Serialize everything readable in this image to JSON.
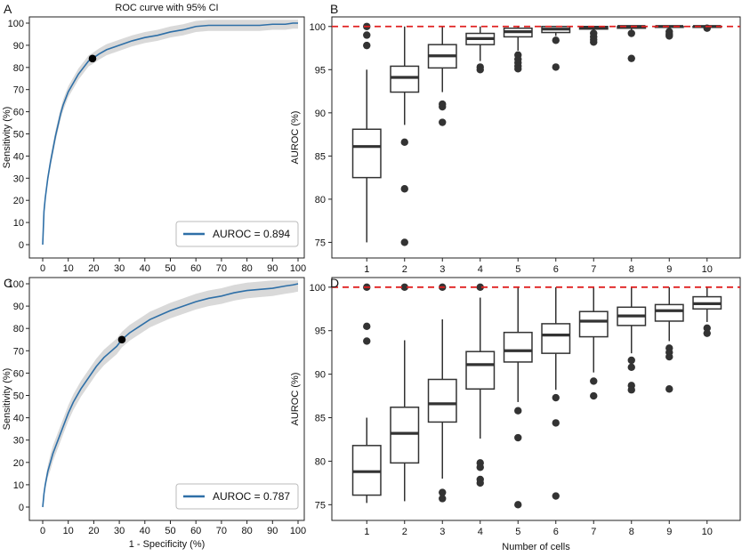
{
  "chart_data": [
    {
      "panel": "A",
      "type": "line",
      "title": "ROC curve with 95% CI",
      "xlabel": "",
      "ylabel": "Sensitivity (%)",
      "xlim": [
        0,
        100
      ],
      "ylim": [
        0,
        100
      ],
      "xticks": [
        0,
        10,
        20,
        30,
        40,
        50,
        60,
        70,
        80,
        90,
        100
      ],
      "yticks": [
        0,
        10,
        20,
        30,
        40,
        50,
        60,
        70,
        80,
        90,
        100
      ],
      "x": [
        0,
        0.5,
        1,
        2,
        3,
        4,
        5,
        6,
        7,
        8,
        9,
        10,
        12,
        14,
        16,
        18,
        19.5,
        22,
        25,
        30,
        35,
        40,
        45,
        50,
        55,
        60,
        65,
        70,
        75,
        80,
        85,
        90,
        95,
        98,
        100
      ],
      "y": [
        0,
        15,
        21,
        30,
        37,
        43,
        49,
        54,
        59,
        63,
        66,
        69,
        73,
        77,
        80,
        83,
        84,
        86,
        88,
        90,
        92,
        93.5,
        94.5,
        96,
        97,
        98.5,
        99,
        99,
        99,
        99,
        99,
        99.5,
        99.5,
        100,
        100
      ],
      "ci_halfwidth": 2.5,
      "highlight_point": {
        "x": 19.5,
        "y": 84
      },
      "legend": "AUROC = 0.894",
      "legend_position": "bottom-right",
      "line_color": "#2e6fa7",
      "band_color": "#d9d9d9"
    },
    {
      "panel": "B",
      "type": "box",
      "title": "",
      "xlabel": "",
      "ylabel": "AUROC (%)",
      "categories": [
        1,
        2,
        3,
        4,
        5,
        6,
        7,
        8,
        9,
        10
      ],
      "ylim": [
        73.5,
        100.8
      ],
      "yticks": [
        75,
        80,
        85,
        90,
        95,
        100
      ],
      "reference_line": 100,
      "reference_color": "#e02020",
      "boxes": [
        {
          "q1": 82.5,
          "median": 86.1,
          "q3": 88.1,
          "whisker_low": 75.0,
          "whisker_high": 95.0,
          "outliers": [
            97.8,
            99.0,
            100.0
          ]
        },
        {
          "q1": 92.4,
          "median": 94.1,
          "q3": 95.4,
          "whisker_low": 88.6,
          "whisker_high": 100.0,
          "outliers": [
            86.6,
            81.2,
            75.0
          ]
        },
        {
          "q1": 95.2,
          "median": 96.6,
          "q3": 97.9,
          "whisker_low": 92.4,
          "whisker_high": 100.0,
          "outliers": [
            91.0,
            90.7,
            88.9
          ]
        },
        {
          "q1": 97.9,
          "median": 98.6,
          "q3": 99.2,
          "whisker_low": 96.0,
          "whisker_high": 100.0,
          "outliers": [
            95.3,
            95.0
          ]
        },
        {
          "q1": 98.8,
          "median": 99.4,
          "q3": 99.8,
          "whisker_low": 97.2,
          "whisker_high": 100.0,
          "outliers": [
            96.7,
            96.2,
            95.8,
            95.4,
            95.1
          ]
        },
        {
          "q1": 99.3,
          "median": 99.7,
          "q3": 100.0,
          "whisker_low": 98.9,
          "whisker_high": 100.0,
          "outliers": [
            98.4,
            95.3
          ]
        },
        {
          "q1": 99.7,
          "median": 99.9,
          "q3": 100.0,
          "whisker_low": 99.4,
          "whisker_high": 100.0,
          "outliers": [
            99.2,
            98.8,
            98.5,
            98.2
          ]
        },
        {
          "q1": 99.8,
          "median": 100.0,
          "q3": 100.0,
          "whisker_low": 99.6,
          "whisker_high": 100.0,
          "outliers": [
            99.2,
            96.3
          ]
        },
        {
          "q1": 99.9,
          "median": 100.0,
          "q3": 100.0,
          "whisker_low": 99.7,
          "whisker_high": 100.0,
          "outliers": [
            99.4,
            99.1,
            98.9
          ]
        },
        {
          "q1": 99.9,
          "median": 100.0,
          "q3": 100.0,
          "whisker_low": 99.8,
          "whisker_high": 100.0,
          "outliers": [
            99.8
          ]
        }
      ]
    },
    {
      "panel": "C",
      "type": "line",
      "title": "",
      "xlabel": "1 - Specificity (%)",
      "ylabel": "Sensitivity (%)",
      "xlim": [
        0,
        100
      ],
      "ylim": [
        0,
        100
      ],
      "xticks": [
        0,
        10,
        20,
        30,
        40,
        50,
        60,
        70,
        80,
        90,
        100
      ],
      "yticks": [
        0,
        10,
        20,
        30,
        40,
        50,
        60,
        70,
        80,
        90,
        100
      ],
      "x": [
        0,
        0.5,
        1,
        2,
        3,
        4,
        5,
        6,
        8,
        10,
        12,
        15,
        18,
        21,
        24,
        27,
        29,
        31,
        34,
        38,
        42,
        46,
        50,
        55,
        60,
        65,
        70,
        75,
        80,
        85,
        90,
        95,
        98,
        100
      ],
      "y": [
        0,
        6,
        10,
        16,
        20,
        24,
        27,
        30,
        36,
        42,
        47,
        53,
        58,
        63,
        67,
        70,
        72,
        75,
        78,
        81,
        84,
        86,
        88,
        90,
        92,
        93.5,
        94.5,
        96,
        97,
        97.5,
        98,
        99,
        99.5,
        100
      ],
      "ci_halfwidth": 3.5,
      "highlight_point": {
        "x": 31,
        "y": 75
      },
      "legend": "AUROC = 0.787",
      "legend_position": "bottom-right",
      "line_color": "#2e6fa7",
      "band_color": "#d9d9d9"
    },
    {
      "panel": "D",
      "type": "box",
      "title": "",
      "xlabel": "Number of cells",
      "ylabel": "AUROC (%)",
      "categories": [
        1,
        2,
        3,
        4,
        5,
        6,
        7,
        8,
        9,
        10
      ],
      "ylim": [
        73.5,
        100.8
      ],
      "yticks": [
        75,
        80,
        85,
        90,
        95,
        100
      ],
      "reference_line": 100,
      "reference_color": "#e02020",
      "boxes": [
        {
          "q1": 76.1,
          "median": 78.8,
          "q3": 81.8,
          "whisker_low": 75.2,
          "whisker_high": 85.0,
          "outliers": [
            93.8,
            95.5,
            100.0
          ]
        },
        {
          "q1": 79.8,
          "median": 83.2,
          "q3": 86.2,
          "whisker_low": 75.4,
          "whisker_high": 93.9,
          "outliers": [
            100.0
          ]
        },
        {
          "q1": 84.5,
          "median": 86.6,
          "q3": 89.4,
          "whisker_low": 78.0,
          "whisker_high": 96.3,
          "outliers": [
            76.4,
            75.7,
            100.0
          ]
        },
        {
          "q1": 88.3,
          "median": 91.1,
          "q3": 92.6,
          "whisker_low": 82.6,
          "whisker_high": 98.8,
          "outliers": [
            79.8,
            79.3,
            77.9,
            77.5,
            100.0
          ]
        },
        {
          "q1": 91.4,
          "median": 92.7,
          "q3": 94.8,
          "whisker_low": 86.8,
          "whisker_high": 100.0,
          "outliers": [
            85.8,
            82.7,
            75.0
          ]
        },
        {
          "q1": 92.4,
          "median": 94.5,
          "q3": 95.8,
          "whisker_low": 88.2,
          "whisker_high": 100.0,
          "outliers": [
            87.3,
            84.4,
            76.0
          ]
        },
        {
          "q1": 94.3,
          "median": 96.1,
          "q3": 97.2,
          "whisker_low": 90.2,
          "whisker_high": 100.0,
          "outliers": [
            89.2,
            87.5
          ]
        },
        {
          "q1": 95.6,
          "median": 96.7,
          "q3": 97.7,
          "whisker_low": 92.4,
          "whisker_high": 100.0,
          "outliers": [
            91.6,
            90.8,
            88.7,
            88.2
          ]
        },
        {
          "q1": 96.1,
          "median": 97.3,
          "q3": 98.0,
          "whisker_low": 93.8,
          "whisker_high": 100.0,
          "outliers": [
            93.0,
            92.5,
            92.0,
            88.3
          ]
        },
        {
          "q1": 97.5,
          "median": 98.1,
          "q3": 98.9,
          "whisker_low": 96.0,
          "whisker_high": 100.0,
          "outliers": [
            95.3,
            94.7
          ]
        }
      ]
    }
  ],
  "panel_labels": [
    "A",
    "B",
    "C",
    "D"
  ]
}
